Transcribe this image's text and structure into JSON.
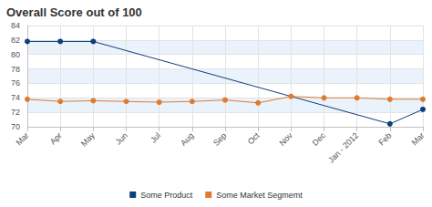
{
  "chart_data": {
    "type": "line",
    "title": "Overall Score out of 100",
    "categories": [
      "Mar",
      "Apr",
      "May",
      "Jun",
      "Jul",
      "Aug",
      "Sep",
      "Oct",
      "Nov",
      "Dec",
      "Jan - 2012",
      "Feb",
      "Mar"
    ],
    "series": [
      {
        "name": "Some Product",
        "color": "#0d3f7d",
        "marker": "circle",
        "values": [
          81.8,
          81.8,
          81.8,
          null,
          null,
          null,
          null,
          null,
          null,
          null,
          null,
          70.4,
          72.4
        ]
      },
      {
        "name": "Some Market Segmemt",
        "color": "#dd7b34",
        "marker": "circle",
        "values": [
          73.8,
          73.5,
          73.6,
          73.5,
          73.4,
          73.5,
          73.7,
          73.3,
          74.2,
          74.0,
          74.0,
          73.8,
          73.8
        ]
      }
    ],
    "ylim": [
      70,
      84
    ],
    "yticks": [
      70,
      72,
      74,
      76,
      78,
      80,
      82,
      84
    ],
    "grid": true,
    "legend": "bottom"
  }
}
